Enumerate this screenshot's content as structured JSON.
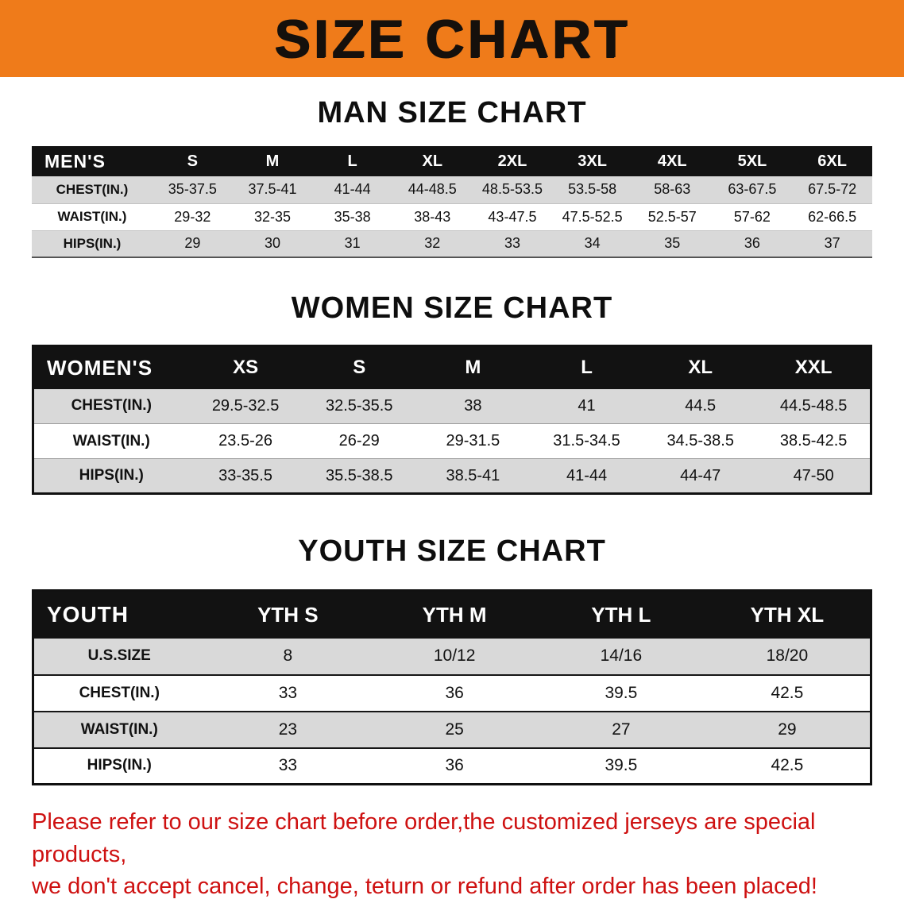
{
  "banner": {
    "title": "SIZE CHART"
  },
  "colors": {
    "banner_bg": "#EF7B1A",
    "table_header_bg": "#121212",
    "table_header_text": "#FFFFFF",
    "row_stripe": "#D9D9D9",
    "notice_text": "#CE1111"
  },
  "chart_data": [
    {
      "type": "table",
      "section_title": "MAN SIZE CHART",
      "columns": [
        "MEN'S",
        "S",
        "M",
        "L",
        "XL",
        "2XL",
        "3XL",
        "4XL",
        "5XL",
        "6XL"
      ],
      "rows": [
        [
          "CHEST(IN.)",
          "35-37.5",
          "37.5-41",
          "41-44",
          "44-48.5",
          "48.5-53.5",
          "53.5-58",
          "58-63",
          "63-67.5",
          "67.5-72"
        ],
        [
          "WAIST(IN.)",
          "29-32",
          "32-35",
          "35-38",
          "38-43",
          "43-47.5",
          "47.5-52.5",
          "52.5-57",
          "57-62",
          "62-66.5"
        ],
        [
          "HIPS(IN.)",
          "29",
          "30",
          "31",
          "32",
          "33",
          "34",
          "35",
          "36",
          "37"
        ]
      ]
    },
    {
      "type": "table",
      "section_title": "WOMEN SIZE CHART",
      "columns": [
        "WOMEN'S",
        "XS",
        "S",
        "M",
        "L",
        "XL",
        "XXL"
      ],
      "rows": [
        [
          "CHEST(IN.)",
          "29.5-32.5",
          "32.5-35.5",
          "38",
          "41",
          "44.5",
          "44.5-48.5"
        ],
        [
          "WAIST(IN.)",
          "23.5-26",
          "26-29",
          "29-31.5",
          "31.5-34.5",
          "34.5-38.5",
          "38.5-42.5"
        ],
        [
          "HIPS(IN.)",
          "33-35.5",
          "35.5-38.5",
          "38.5-41",
          "41-44",
          "44-47",
          "47-50"
        ]
      ]
    },
    {
      "type": "table",
      "section_title": "YOUTH SIZE CHART",
      "columns": [
        "YOUTH",
        "YTH S",
        "YTH M",
        "YTH L",
        "YTH XL"
      ],
      "rows": [
        [
          "U.S.SIZE",
          "8",
          "10/12",
          "14/16",
          "18/20"
        ],
        [
          "CHEST(IN.)",
          "33",
          "36",
          "39.5",
          "42.5"
        ],
        [
          "WAIST(IN.)",
          "23",
          "25",
          "27",
          "29"
        ],
        [
          "HIPS(IN.)",
          "33",
          "36",
          "39.5",
          "42.5"
        ]
      ]
    }
  ],
  "footer": {
    "lines": [
      "Please refer to our size chart before order,the customized jerseys are special products,",
      "we don't accept cancel, change, teturn or refund after order has been placed!"
    ]
  }
}
